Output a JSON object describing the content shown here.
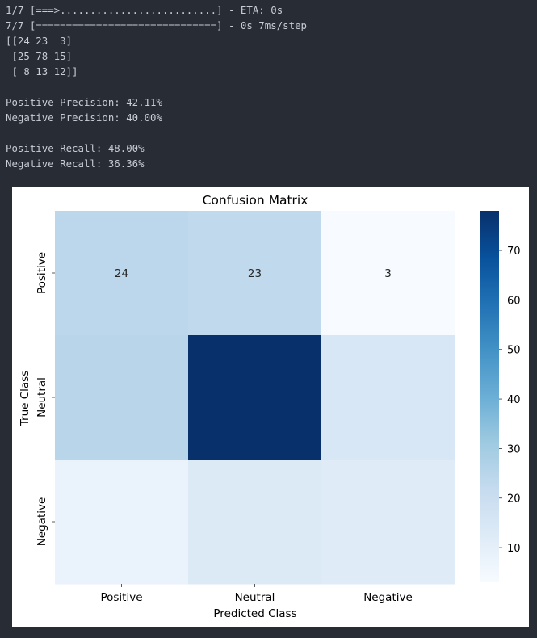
{
  "console": {
    "lines": [
      "1/7 [===>..........................] - ETA: 0s",
      "7/7 [==============================] - 0s 7ms/step",
      "[[24 23  3]",
      " [25 78 15]",
      " [ 8 13 12]]",
      "",
      "Positive Precision: 42.11%",
      "Negative Precision: 40.00%",
      "",
      "Positive Recall: 48.00%",
      "Negative Recall: 36.36%"
    ]
  },
  "chart_data": {
    "type": "heatmap",
    "title": "Confusion Matrix",
    "xlabel": "Predicted Class",
    "ylabel": "True Class",
    "x_categories": [
      "Positive",
      "Neutral",
      "Negative"
    ],
    "y_categories": [
      "Positive",
      "Neutral",
      "Negative"
    ],
    "values": [
      [
        24,
        23,
        3
      ],
      [
        25,
        78,
        15
      ],
      [
        8,
        13,
        12
      ]
    ],
    "annotations_visible": [
      [
        true,
        true,
        true
      ],
      [
        false,
        false,
        false
      ],
      [
        false,
        false,
        false
      ]
    ],
    "colormap": "Blues",
    "vmin": 3,
    "vmax": 78,
    "colorbar_ticks": [
      10,
      20,
      30,
      40,
      50,
      60,
      70
    ]
  }
}
